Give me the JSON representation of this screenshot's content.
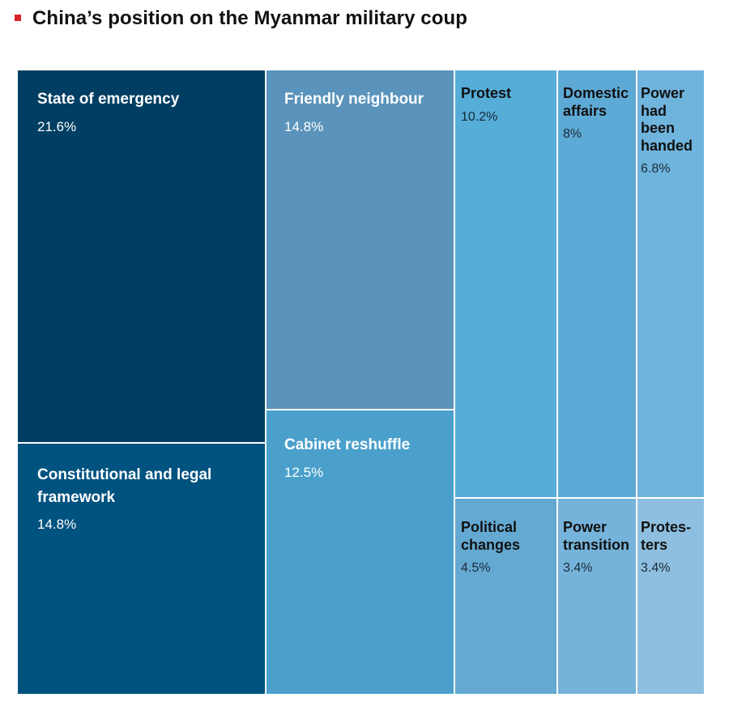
{
  "title": "China’s position on the Myanmar military coup",
  "colors": {
    "accent_marker": "#d8232a"
  },
  "chart_data": {
    "type": "treemap",
    "title": "China’s position on the Myanmar military coup",
    "unit": "%",
    "items": [
      {
        "label": "State of emergency",
        "value": 21.6,
        "value_label": "21.6%",
        "color": "#003e63"
      },
      {
        "label": "Constitutional and legal\nframework",
        "value": 14.8,
        "value_label": "14.8%",
        "color": "#00527f"
      },
      {
        "label": "Friendly neighbour",
        "value": 14.8,
        "value_label": "14.8%",
        "color": "#5a93bb"
      },
      {
        "label": "Cabinet reshuffle",
        "value": 12.5,
        "value_label": "12.5%",
        "color": "#4aa0cb"
      },
      {
        "label": "Protest",
        "value": 10.2,
        "value_label": "10.2%",
        "color": "#55add8"
      },
      {
        "label": "Domestic\naffairs",
        "value": 8,
        "value_label": "8%",
        "color": "#5eaad6"
      },
      {
        "label": "Power\nhad\nbeen\nhanded",
        "value": 6.8,
        "value_label": "6.8%",
        "color": "#6fb4dd"
      },
      {
        "label": "Political\nchanges",
        "value": 4.5,
        "value_label": "4.5%",
        "color": "#63a9d2"
      },
      {
        "label": "Power\ntransition",
        "value": 3.4,
        "value_label": "3.4%",
        "color": "#75b3da"
      },
      {
        "label": "Protes-\nters",
        "value": 3.4,
        "value_label": "3.4%",
        "color": "#8ebfe0"
      }
    ]
  }
}
